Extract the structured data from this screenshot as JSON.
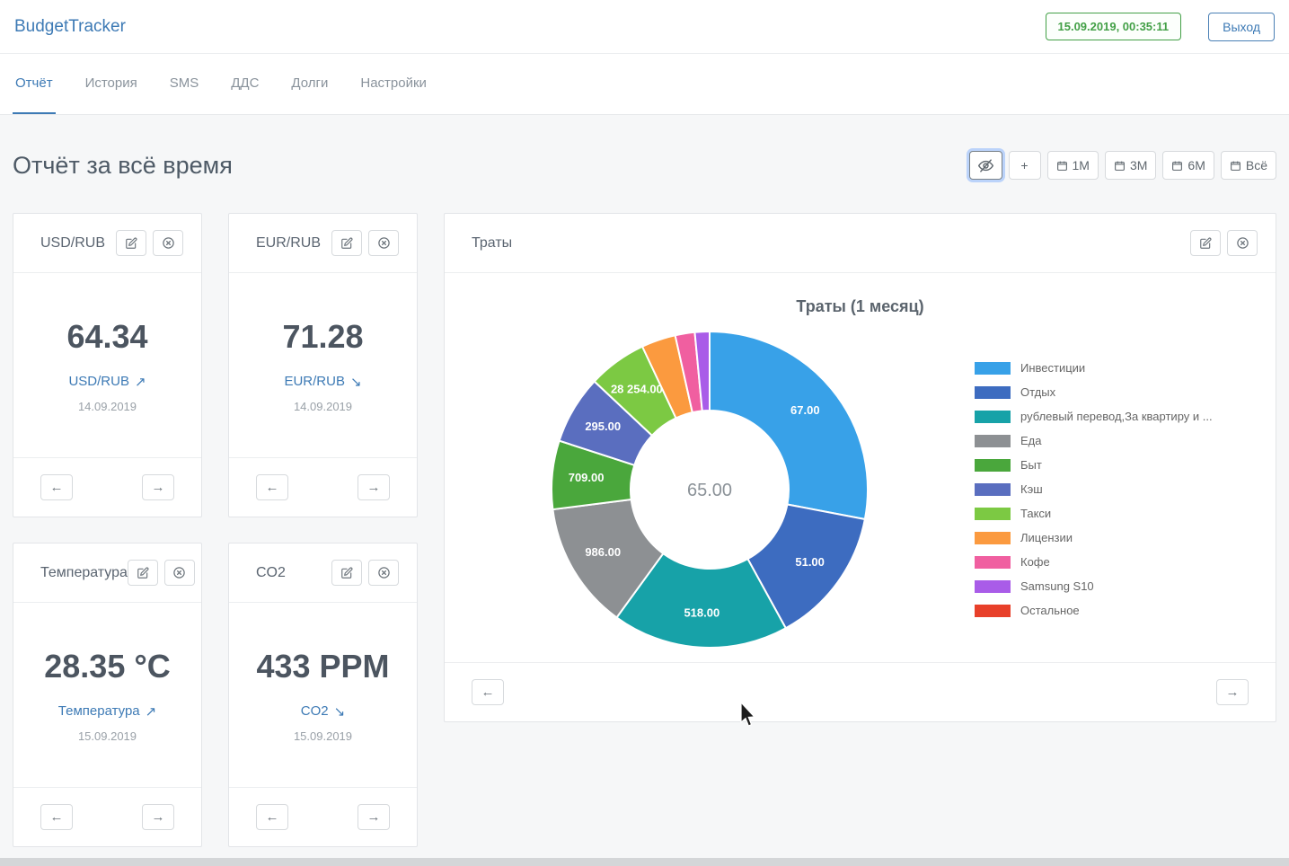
{
  "app": {
    "title": "BudgetTracker"
  },
  "header": {
    "datetime": "15.09.2019, 00:35:11",
    "logout_label": "Выход"
  },
  "nav": {
    "tabs": [
      {
        "label": "Отчёт",
        "active": true
      },
      {
        "label": "История",
        "active": false
      },
      {
        "label": "SMS",
        "active": false
      },
      {
        "label": "ДДС",
        "active": false
      },
      {
        "label": "Долги",
        "active": false
      },
      {
        "label": "Настройки",
        "active": false
      }
    ]
  },
  "page": {
    "title": "Отчёт за всё время"
  },
  "toolbar": {
    "plus_label": "+",
    "ranges": [
      {
        "label": "1M"
      },
      {
        "label": "3M"
      },
      {
        "label": "6M"
      },
      {
        "label": "Всё"
      }
    ]
  },
  "icons": {
    "prev": "←",
    "next": "→"
  },
  "widgets": [
    {
      "title": "USD/RUB",
      "value": "64.34",
      "label": "USD/RUB",
      "trend": "up",
      "trend_arrow": "↗",
      "date": "14.09.2019"
    },
    {
      "title": "EUR/RUB",
      "value": "71.28",
      "label": "EUR/RUB",
      "trend": "down",
      "trend_arrow": "↘",
      "date": "14.09.2019"
    },
    {
      "title": "Температура",
      "value": "28.35 °C",
      "label": "Температура",
      "trend": "up",
      "trend_arrow": "↗",
      "date": "15.09.2019"
    },
    {
      "title": "CO2",
      "value": "433 PPM",
      "label": "CO2",
      "trend": "down",
      "trend_arrow": "↘",
      "date": "15.09.2019"
    }
  ],
  "expenses_card": {
    "title": "Траты"
  },
  "chart_data": {
    "type": "pie",
    "variant": "doughnut",
    "title": "Траты (1 месяц)",
    "center_label": "65.00",
    "legend_position": "right",
    "slices": [
      {
        "name": "Инвестиции",
        "color": "#38a1e8",
        "percent": 28,
        "label": "67.00"
      },
      {
        "name": "Отдых",
        "color": "#3d6cc0",
        "percent": 14,
        "label": "51.00"
      },
      {
        "name": "рублевый перевод,За квартиру и ...",
        "color": "#17a2a8",
        "percent": 18,
        "label": "518.00"
      },
      {
        "name": "Еда",
        "color": "#8d9093",
        "percent": 13,
        "label": "986.00"
      },
      {
        "name": "Быт",
        "color": "#4aa73c",
        "percent": 7,
        "label": "709.00"
      },
      {
        "name": "Кэш",
        "color": "#5a6ebf",
        "percent": 7,
        "label": "295.00"
      },
      {
        "name": "Такси",
        "color": "#7cc943",
        "percent": 6,
        "label": "28 254.00"
      },
      {
        "name": "Лицензии",
        "color": "#fb9a3f",
        "percent": 3.5,
        "label": ""
      },
      {
        "name": "Кофе",
        "color": "#f05fa0",
        "percent": 2,
        "label": ""
      },
      {
        "name": "Samsung S10",
        "color": "#a95ce8",
        "percent": 1.5,
        "label": ""
      },
      {
        "name": "Остальное",
        "color": "#e8402a",
        "percent": 0,
        "label": ""
      }
    ]
  }
}
